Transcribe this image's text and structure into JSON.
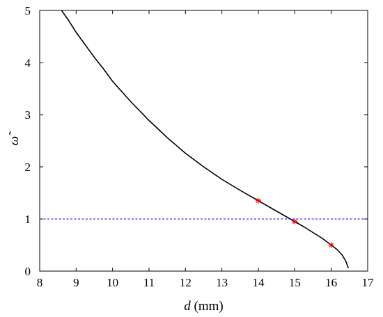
{
  "chart_data": {
    "type": "line",
    "title": "",
    "xlabel": {
      "symbol": "d",
      "unit": " (mm)"
    },
    "ylabel": "ω̃",
    "xlim": [
      8,
      17
    ],
    "ylim": [
      0,
      5
    ],
    "xticks": [
      "8",
      "9",
      "10",
      "11",
      "12",
      "13",
      "14",
      "15",
      "16",
      "17"
    ],
    "yticks": [
      "0",
      "1",
      "2",
      "3",
      "4",
      "5"
    ],
    "grid": false,
    "series": [
      {
        "color": "#000000",
        "style": "solid",
        "x": [
          8.6,
          8.8,
          9.0,
          9.25,
          9.5,
          9.75,
          10.0,
          10.5,
          11.0,
          11.5,
          12.0,
          12.5,
          13.0,
          13.5,
          14.0,
          14.25,
          14.5,
          14.75,
          15.0,
          15.25,
          15.5,
          15.75,
          16.0,
          16.15,
          16.3,
          16.4,
          16.47
        ],
        "y": [
          5.0,
          4.8,
          4.58,
          4.34,
          4.1,
          3.88,
          3.64,
          3.25,
          2.89,
          2.56,
          2.26,
          2.0,
          1.76,
          1.55,
          1.35,
          1.25,
          1.15,
          1.05,
          0.95,
          0.85,
          0.74,
          0.63,
          0.5,
          0.42,
          0.31,
          0.19,
          0.06
        ]
      },
      {
        "color": "#0000ff",
        "style": "dashed",
        "x": [
          8,
          17
        ],
        "y": [
          1,
          1
        ]
      }
    ],
    "markers": {
      "color": "#ff0000",
      "symbol": "asterisk",
      "x": [
        14,
        15,
        16
      ],
      "y": [
        1.35,
        0.95,
        0.5
      ]
    }
  }
}
